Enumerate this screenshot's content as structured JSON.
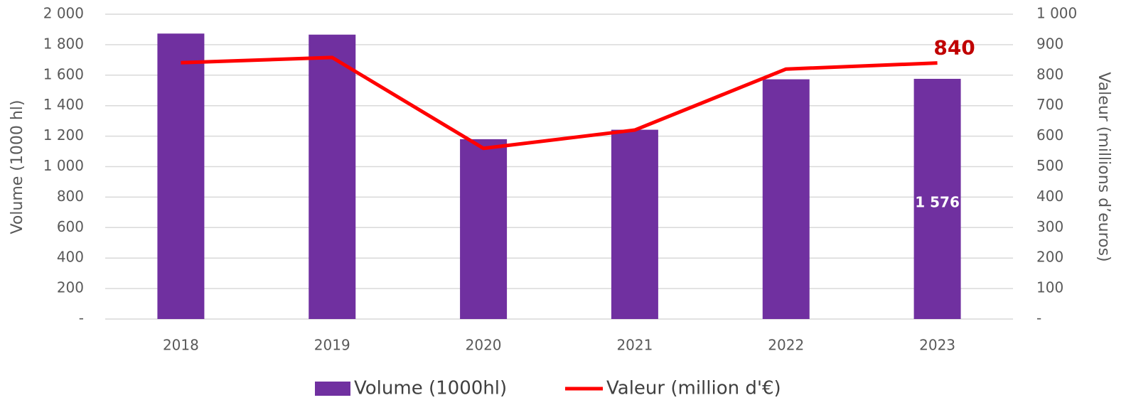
{
  "chart_data": {
    "type": "bar_line",
    "categories": [
      "2018",
      "2019",
      "2020",
      "2021",
      "2022",
      "2023"
    ],
    "y_label": "Volume (1000 hl)",
    "y2_label": "Valeur (millions d’euros)",
    "series": [
      {
        "name": "Volume (1000hl)",
        "type": "bar",
        "color": "#7030a0",
        "values": [
          1873,
          1866,
          1180,
          1242,
          1573,
          1576
        ],
        "value_labels": [
          null,
          null,
          null,
          null,
          null,
          "1 576"
        ]
      },
      {
        "name": "Valeur (million d'€)",
        "type": "line",
        "axis": "y2",
        "color": "#ff0000",
        "values": [
          841,
          858,
          560,
          620,
          820,
          840
        ],
        "value_labels": [
          null,
          null,
          null,
          null,
          null,
          "840"
        ]
      }
    ],
    "ylim": [
      0,
      2000
    ],
    "yticks": [
      {
        "value": 0,
        "label": "-"
      },
      200,
      400,
      600,
      800,
      {
        "value": 1000,
        "label": "1 000"
      },
      {
        "value": 1200,
        "label": "1 200"
      },
      {
        "value": 1400,
        "label": "1 400"
      },
      {
        "value": 1600,
        "label": "1 600"
      },
      {
        "value": 1800,
        "label": "1 800"
      },
      {
        "value": 2000,
        "label": "2 000"
      }
    ],
    "y2lim": [
      0,
      1000
    ],
    "y2ticks": [
      {
        "value": 0,
        "label": "-"
      },
      100,
      200,
      300,
      400,
      500,
      600,
      700,
      800,
      900,
      {
        "value": 1000,
        "label": "1 000"
      }
    ],
    "grid": true,
    "legend": "bottom"
  }
}
